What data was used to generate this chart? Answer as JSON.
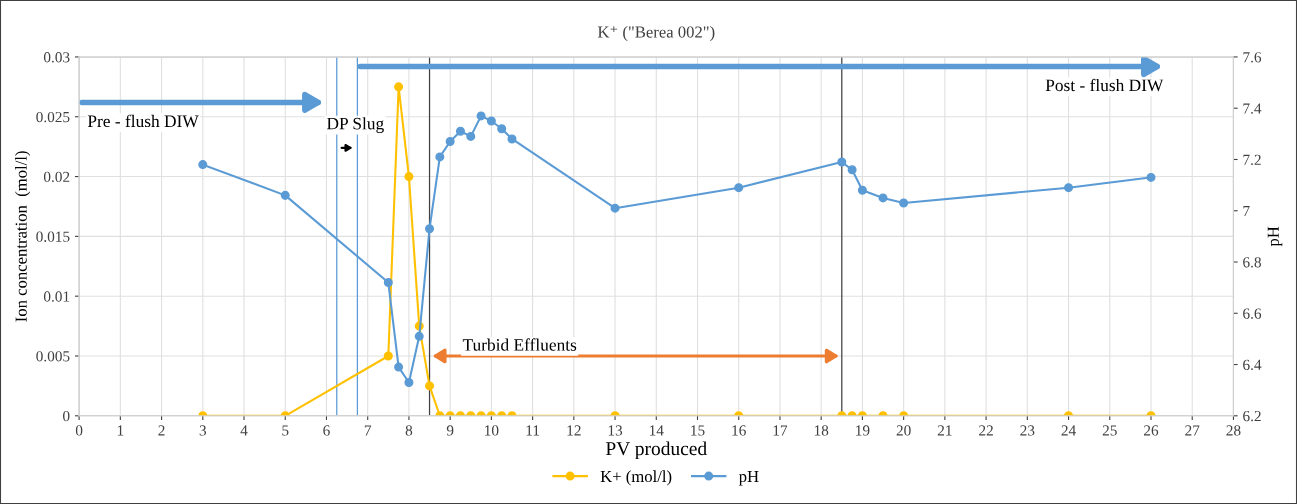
{
  "chart_data": {
    "type": "line",
    "title": "K⁺ (\"Berea 002\")",
    "xlabel": "PV produced",
    "ylabel": "Ion concentration  (mol/l)",
    "y2label": "pH",
    "x": [
      3,
      5,
      7.5,
      7.75,
      8,
      8.25,
      8.5,
      8.75,
      9,
      9.25,
      9.5,
      9.75,
      10,
      10.25,
      10.5,
      13,
      16,
      18.5,
      18.75,
      19,
      19.5,
      20,
      24,
      26
    ],
    "series": [
      {
        "name": "K+ (mol/l)",
        "color": "#ffc000",
        "values": [
          0,
          0,
          0.005,
          0.0275,
          0.02,
          0.0075,
          0.0025,
          0,
          0,
          0,
          0,
          0,
          0,
          0,
          0,
          0,
          0,
          0,
          0,
          0,
          0,
          0,
          0,
          0
        ]
      },
      {
        "name": "pH",
        "color": "#5b9bd5",
        "axis": "y2",
        "values": [
          7.18,
          7.06,
          6.72,
          6.39,
          6.33,
          6.51,
          6.93,
          7.21,
          7.27,
          7.31,
          7.29,
          7.37,
          7.35,
          7.32,
          7.28,
          7.01,
          7.09,
          7.19,
          7.16,
          7.08,
          7.05,
          7.03,
          7.09,
          7.13
        ]
      }
    ],
    "xlim": [
      0,
      28
    ],
    "xticks": [
      0,
      1,
      2,
      3,
      4,
      5,
      6,
      7,
      8,
      9,
      10,
      11,
      12,
      13,
      14,
      15,
      16,
      17,
      18,
      19,
      20,
      21,
      22,
      23,
      24,
      25,
      26,
      27,
      28
    ],
    "ylim": [
      0,
      0.03
    ],
    "yticks": [
      0,
      0.005,
      0.01,
      0.015,
      0.02,
      0.025,
      0.03
    ],
    "y2lim": [
      6.2,
      7.6
    ],
    "y2ticks": [
      6.2,
      6.4,
      6.6,
      6.8,
      {
        "value": 7.0,
        "label": "7"
      },
      7.2,
      7.4,
      7.6
    ],
    "ref_lines": [
      {
        "axis": "x",
        "value": 6.25,
        "color": "#5b9bd5"
      },
      {
        "axis": "x",
        "value": 6.75,
        "color": "#5b9bd5"
      },
      {
        "axis": "x",
        "value": 8.5,
        "color": "#404040"
      },
      {
        "axis": "x",
        "value": 18.5,
        "color": "#404040"
      }
    ],
    "annotations": [
      "Pre - flush DIW",
      "DP Slug",
      "Post - flush DIW",
      "Turbid Effluents"
    ],
    "grid": true,
    "legend": "bottom",
    "marker": "circle",
    "line_style": "solid"
  }
}
